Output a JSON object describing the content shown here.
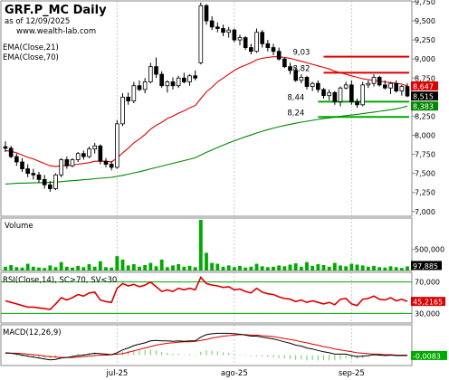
{
  "header": {
    "title": "GRF.P_MC Daily",
    "subtitle": "as of 12/09/2025",
    "site": "www.wealth-lab.com"
  },
  "colors": {
    "up": "#00aa00",
    "down": "#000000",
    "ema21": "#dd0000",
    "ema70": "#008800",
    "resistance": "#dd0000",
    "support": "#00aa00",
    "volume": "#00aa00",
    "rsi": "#dd0000",
    "macd_hist": "#66cc66"
  },
  "chart_data": [
    {
      "type": "candlestick",
      "name": "price",
      "ylim": [
        6950,
        9750
      ],
      "yticks": [
        "7,000",
        "7,250",
        "7,500",
        "7,750",
        "8,000",
        "8,250",
        "8,500",
        "8,750",
        "9,000",
        "9,250",
        "9,500",
        "9,750"
      ],
      "xticks": [
        "jul-25",
        "ago-25",
        "sep-25"
      ],
      "legend": [
        "EMA(Close,21)",
        "EMA(Close,70)"
      ],
      "ohlc": [
        [
          7850,
          7920,
          7780,
          7830
        ],
        [
          7830,
          7860,
          7700,
          7720
        ],
        [
          7720,
          7760,
          7600,
          7650
        ],
        [
          7650,
          7700,
          7520,
          7560
        ],
        [
          7560,
          7620,
          7450,
          7500
        ],
        [
          7500,
          7560,
          7420,
          7480
        ],
        [
          7480,
          7520,
          7380,
          7420
        ],
        [
          7420,
          7480,
          7300,
          7350
        ],
        [
          7350,
          7400,
          7260,
          7300
        ],
        [
          7300,
          7500,
          7280,
          7480
        ],
        [
          7480,
          7700,
          7450,
          7680
        ],
        [
          7680,
          7720,
          7560,
          7600
        ],
        [
          7600,
          7700,
          7580,
          7680
        ],
        [
          7680,
          7780,
          7650,
          7760
        ],
        [
          7760,
          7800,
          7680,
          7720
        ],
        [
          7720,
          7850,
          7700,
          7820
        ],
        [
          7820,
          7900,
          7760,
          7860
        ],
        [
          7860,
          7880,
          7620,
          7660
        ],
        [
          7660,
          7700,
          7580,
          7620
        ],
        [
          7620,
          7660,
          7540,
          7580
        ],
        [
          7580,
          8200,
          7560,
          8150
        ],
        [
          8150,
          8550,
          8120,
          8500
        ],
        [
          8500,
          8560,
          8400,
          8450
        ],
        [
          8450,
          8700,
          8420,
          8650
        ],
        [
          8650,
          8720,
          8580,
          8600
        ],
        [
          8600,
          8750,
          8550,
          8700
        ],
        [
          8700,
          8950,
          8680,
          8900
        ],
        [
          8900,
          9020,
          8750,
          8800
        ],
        [
          8800,
          8840,
          8620,
          8650
        ],
        [
          8650,
          8720,
          8560,
          8700
        ],
        [
          8700,
          8760,
          8600,
          8650
        ],
        [
          8650,
          8780,
          8620,
          8750
        ],
        [
          8750,
          8820,
          8680,
          8700
        ],
        [
          8700,
          8800,
          8650,
          8780
        ],
        [
          8780,
          8850,
          8720,
          8750
        ],
        [
          8950,
          9740,
          8930,
          9700
        ],
        [
          9700,
          9720,
          9450,
          9500
        ],
        [
          9500,
          9560,
          9380,
          9420
        ],
        [
          9420,
          9480,
          9350,
          9400
        ],
        [
          9400,
          9450,
          9300,
          9350
        ],
        [
          9350,
          9420,
          9280,
          9380
        ],
        [
          9380,
          9400,
          9220,
          9250
        ],
        [
          9250,
          9320,
          9180,
          9280
        ],
        [
          9280,
          9300,
          9120,
          9150
        ],
        [
          9150,
          9200,
          9060,
          9100
        ],
        [
          9100,
          9400,
          9080,
          9350
        ],
        [
          9350,
          9380,
          9150,
          9200
        ],
        [
          9200,
          9250,
          9100,
          9150
        ],
        [
          9150,
          9200,
          9050,
          9100
        ],
        [
          9100,
          9150,
          8980,
          9000
        ],
        [
          9000,
          9020,
          8880,
          8900
        ],
        [
          8900,
          8950,
          8800,
          8850
        ],
        [
          8850,
          8880,
          8700,
          8720
        ],
        [
          8720,
          8800,
          8680,
          8760
        ],
        [
          8760,
          8780,
          8600,
          8640
        ],
        [
          8640,
          8700,
          8580,
          8680
        ],
        [
          8680,
          8720,
          8560,
          8600
        ],
        [
          8600,
          8620,
          8480,
          8520
        ],
        [
          8520,
          8600,
          8460,
          8560
        ],
        [
          8560,
          8580,
          8400,
          8440
        ],
        [
          8440,
          8640,
          8380,
          8620
        ],
        [
          8620,
          8700,
          8600,
          8660
        ],
        [
          8660,
          8720,
          8400,
          8440
        ],
        [
          8440,
          8480,
          8360,
          8400
        ],
        [
          8400,
          8700,
          8380,
          8660
        ],
        [
          8660,
          8720,
          8620,
          8680
        ],
        [
          8680,
          8800,
          8640,
          8760
        ],
        [
          8760,
          8780,
          8640,
          8660
        ],
        [
          8660,
          8720,
          8600,
          8620
        ],
        [
          8620,
          8700,
          8540,
          8680
        ],
        [
          8680,
          8720,
          8560,
          8580
        ],
        [
          8580,
          8660,
          8520,
          8640
        ],
        [
          8640,
          8680,
          8500,
          8515
        ]
      ],
      "ema21": [
        7800,
        7790,
        7770,
        7740,
        7710,
        7690,
        7660,
        7630,
        7600,
        7590,
        7600,
        7600,
        7610,
        7620,
        7630,
        7640,
        7660,
        7660,
        7660,
        7650,
        7700,
        7770,
        7830,
        7900,
        7950,
        8010,
        8080,
        8130,
        8170,
        8220,
        8250,
        8290,
        8320,
        8360,
        8390,
        8480,
        8570,
        8630,
        8700,
        8750,
        8800,
        8850,
        8890,
        8920,
        8950,
        8990,
        9010,
        9020,
        9030,
        9030,
        9020,
        9010,
        8990,
        8970,
        8950,
        8930,
        8910,
        8890,
        8870,
        8840,
        8820,
        8800,
        8780,
        8760,
        8740,
        8730,
        8720,
        8710,
        8700,
        8690,
        8680,
        8670,
        8647
      ],
      "ema70": [
        7360,
        7365,
        7370,
        7372,
        7374,
        7376,
        7378,
        7380,
        7382,
        7386,
        7392,
        7398,
        7404,
        7410,
        7416,
        7422,
        7430,
        7436,
        7442,
        7448,
        7460,
        7475,
        7490,
        7506,
        7522,
        7540,
        7560,
        7578,
        7596,
        7614,
        7632,
        7650,
        7668,
        7686,
        7704,
        7740,
        7776,
        7808,
        7840,
        7870,
        7900,
        7928,
        7954,
        7980,
        8004,
        8030,
        8052,
        8074,
        8094,
        8112,
        8128,
        8144,
        8158,
        8172,
        8184,
        8196,
        8208,
        8218,
        8228,
        8238,
        8248,
        8258,
        8266,
        8274,
        8284,
        8294,
        8304,
        8314,
        8324,
        8334,
        8346,
        8362,
        8383
      ],
      "levels": [
        {
          "value": 9030,
          "label": "9,03",
          "kind": "resistance"
        },
        {
          "value": 8820,
          "label": "8,82",
          "kind": "resistance"
        },
        {
          "value": 8440,
          "label": "8,44",
          "kind": "support"
        },
        {
          "value": 8240,
          "label": "8,24",
          "kind": "support"
        }
      ],
      "last_labels": [
        {
          "value": 8647,
          "label": "8,647",
          "color": "#dd0000"
        },
        {
          "value": 8515,
          "label": "8,515",
          "color": "#000000"
        },
        {
          "value": 8383,
          "label": "8,383",
          "color": "#008800"
        }
      ]
    },
    {
      "type": "bar",
      "name": "volume",
      "title": "Volume",
      "ytick": "500,000",
      "last_label": "97,885",
      "ymax": 1200000,
      "values": [
        90000,
        130000,
        80000,
        70000,
        160000,
        90000,
        70000,
        60000,
        120000,
        80000,
        200000,
        90000,
        70000,
        110000,
        80000,
        150000,
        90000,
        220000,
        80000,
        70000,
        340000,
        260000,
        120000,
        150000,
        90000,
        130000,
        180000,
        100000,
        260000,
        80000,
        120000,
        150000,
        90000,
        110000,
        80000,
        1200000,
        420000,
        180000,
        160000,
        90000,
        120000,
        80000,
        110000,
        70000,
        90000,
        160000,
        100000,
        80000,
        90000,
        120000,
        100000,
        140000,
        170000,
        90000,
        200000,
        110000,
        150000,
        130000,
        90000,
        180000,
        120000,
        100000,
        160000,
        140000,
        120000,
        90000,
        110000,
        80000,
        70000,
        100000,
        80000,
        60000,
        97885
      ]
    },
    {
      "type": "line",
      "name": "rsi",
      "title": "RSI(Close,14), SC>70, SV<30",
      "yticks": [
        "70,000",
        "30,000"
      ],
      "ylim": [
        20,
        80
      ],
      "bands": [
        70,
        30
      ],
      "last_label": "45,2165",
      "values": [
        46,
        44,
        42,
        40,
        38,
        38,
        37,
        36,
        35,
        42,
        50,
        47,
        50,
        54,
        52,
        56,
        57,
        47,
        45,
        44,
        62,
        68,
        65,
        67,
        64,
        66,
        70,
        64,
        58,
        60,
        58,
        62,
        60,
        62,
        60,
        76,
        68,
        66,
        65,
        63,
        64,
        60,
        61,
        58,
        56,
        62,
        57,
        55,
        54,
        51,
        49,
        48,
        45,
        47,
        44,
        46,
        44,
        42,
        44,
        41,
        48,
        49,
        42,
        40,
        48,
        49,
        52,
        48,
        47,
        50,
        46,
        48,
        45.2165
      ]
    },
    {
      "type": "line",
      "name": "macd",
      "title": "MACD(12,26,9)",
      "last_label": "-0,0083",
      "ylim": [
        -0.2,
        0.6
      ],
      "macd": [
        0.05,
        0.04,
        0.02,
        0.0,
        -0.02,
        -0.04,
        -0.06,
        -0.08,
        -0.1,
        -0.09,
        -0.06,
        -0.05,
        -0.03,
        -0.01,
        0.0,
        0.02,
        0.04,
        0.03,
        0.02,
        0.01,
        0.05,
        0.11,
        0.15,
        0.2,
        0.23,
        0.26,
        0.3,
        0.31,
        0.3,
        0.3,
        0.29,
        0.3,
        0.29,
        0.3,
        0.3,
        0.38,
        0.43,
        0.45,
        0.46,
        0.46,
        0.46,
        0.45,
        0.44,
        0.42,
        0.4,
        0.4,
        0.38,
        0.36,
        0.34,
        0.31,
        0.28,
        0.25,
        0.21,
        0.19,
        0.15,
        0.13,
        0.1,
        0.07,
        0.05,
        0.02,
        0.02,
        0.02,
        -0.01,
        -0.03,
        -0.02,
        -0.01,
        0.01,
        0.0,
        -0.01,
        0.0,
        -0.01,
        -0.01,
        -0.0083
      ],
      "signal": [
        0.04,
        0.04,
        0.04,
        0.03,
        0.02,
        0.01,
        0.0,
        -0.02,
        -0.03,
        -0.04,
        -0.05,
        -0.05,
        -0.05,
        -0.04,
        -0.03,
        -0.02,
        -0.01,
        0.0,
        0.0,
        0.01,
        0.02,
        0.03,
        0.06,
        0.09,
        0.12,
        0.15,
        0.18,
        0.21,
        0.23,
        0.25,
        0.26,
        0.27,
        0.28,
        0.28,
        0.29,
        0.31,
        0.33,
        0.36,
        0.38,
        0.4,
        0.41,
        0.42,
        0.43,
        0.43,
        0.42,
        0.42,
        0.41,
        0.4,
        0.39,
        0.37,
        0.35,
        0.33,
        0.31,
        0.28,
        0.26,
        0.23,
        0.21,
        0.18,
        0.16,
        0.13,
        0.11,
        0.09,
        0.07,
        0.05,
        0.04,
        0.03,
        0.02,
        0.02,
        0.01,
        0.01,
        0.0,
        0.0,
        0.0
      ]
    }
  ]
}
